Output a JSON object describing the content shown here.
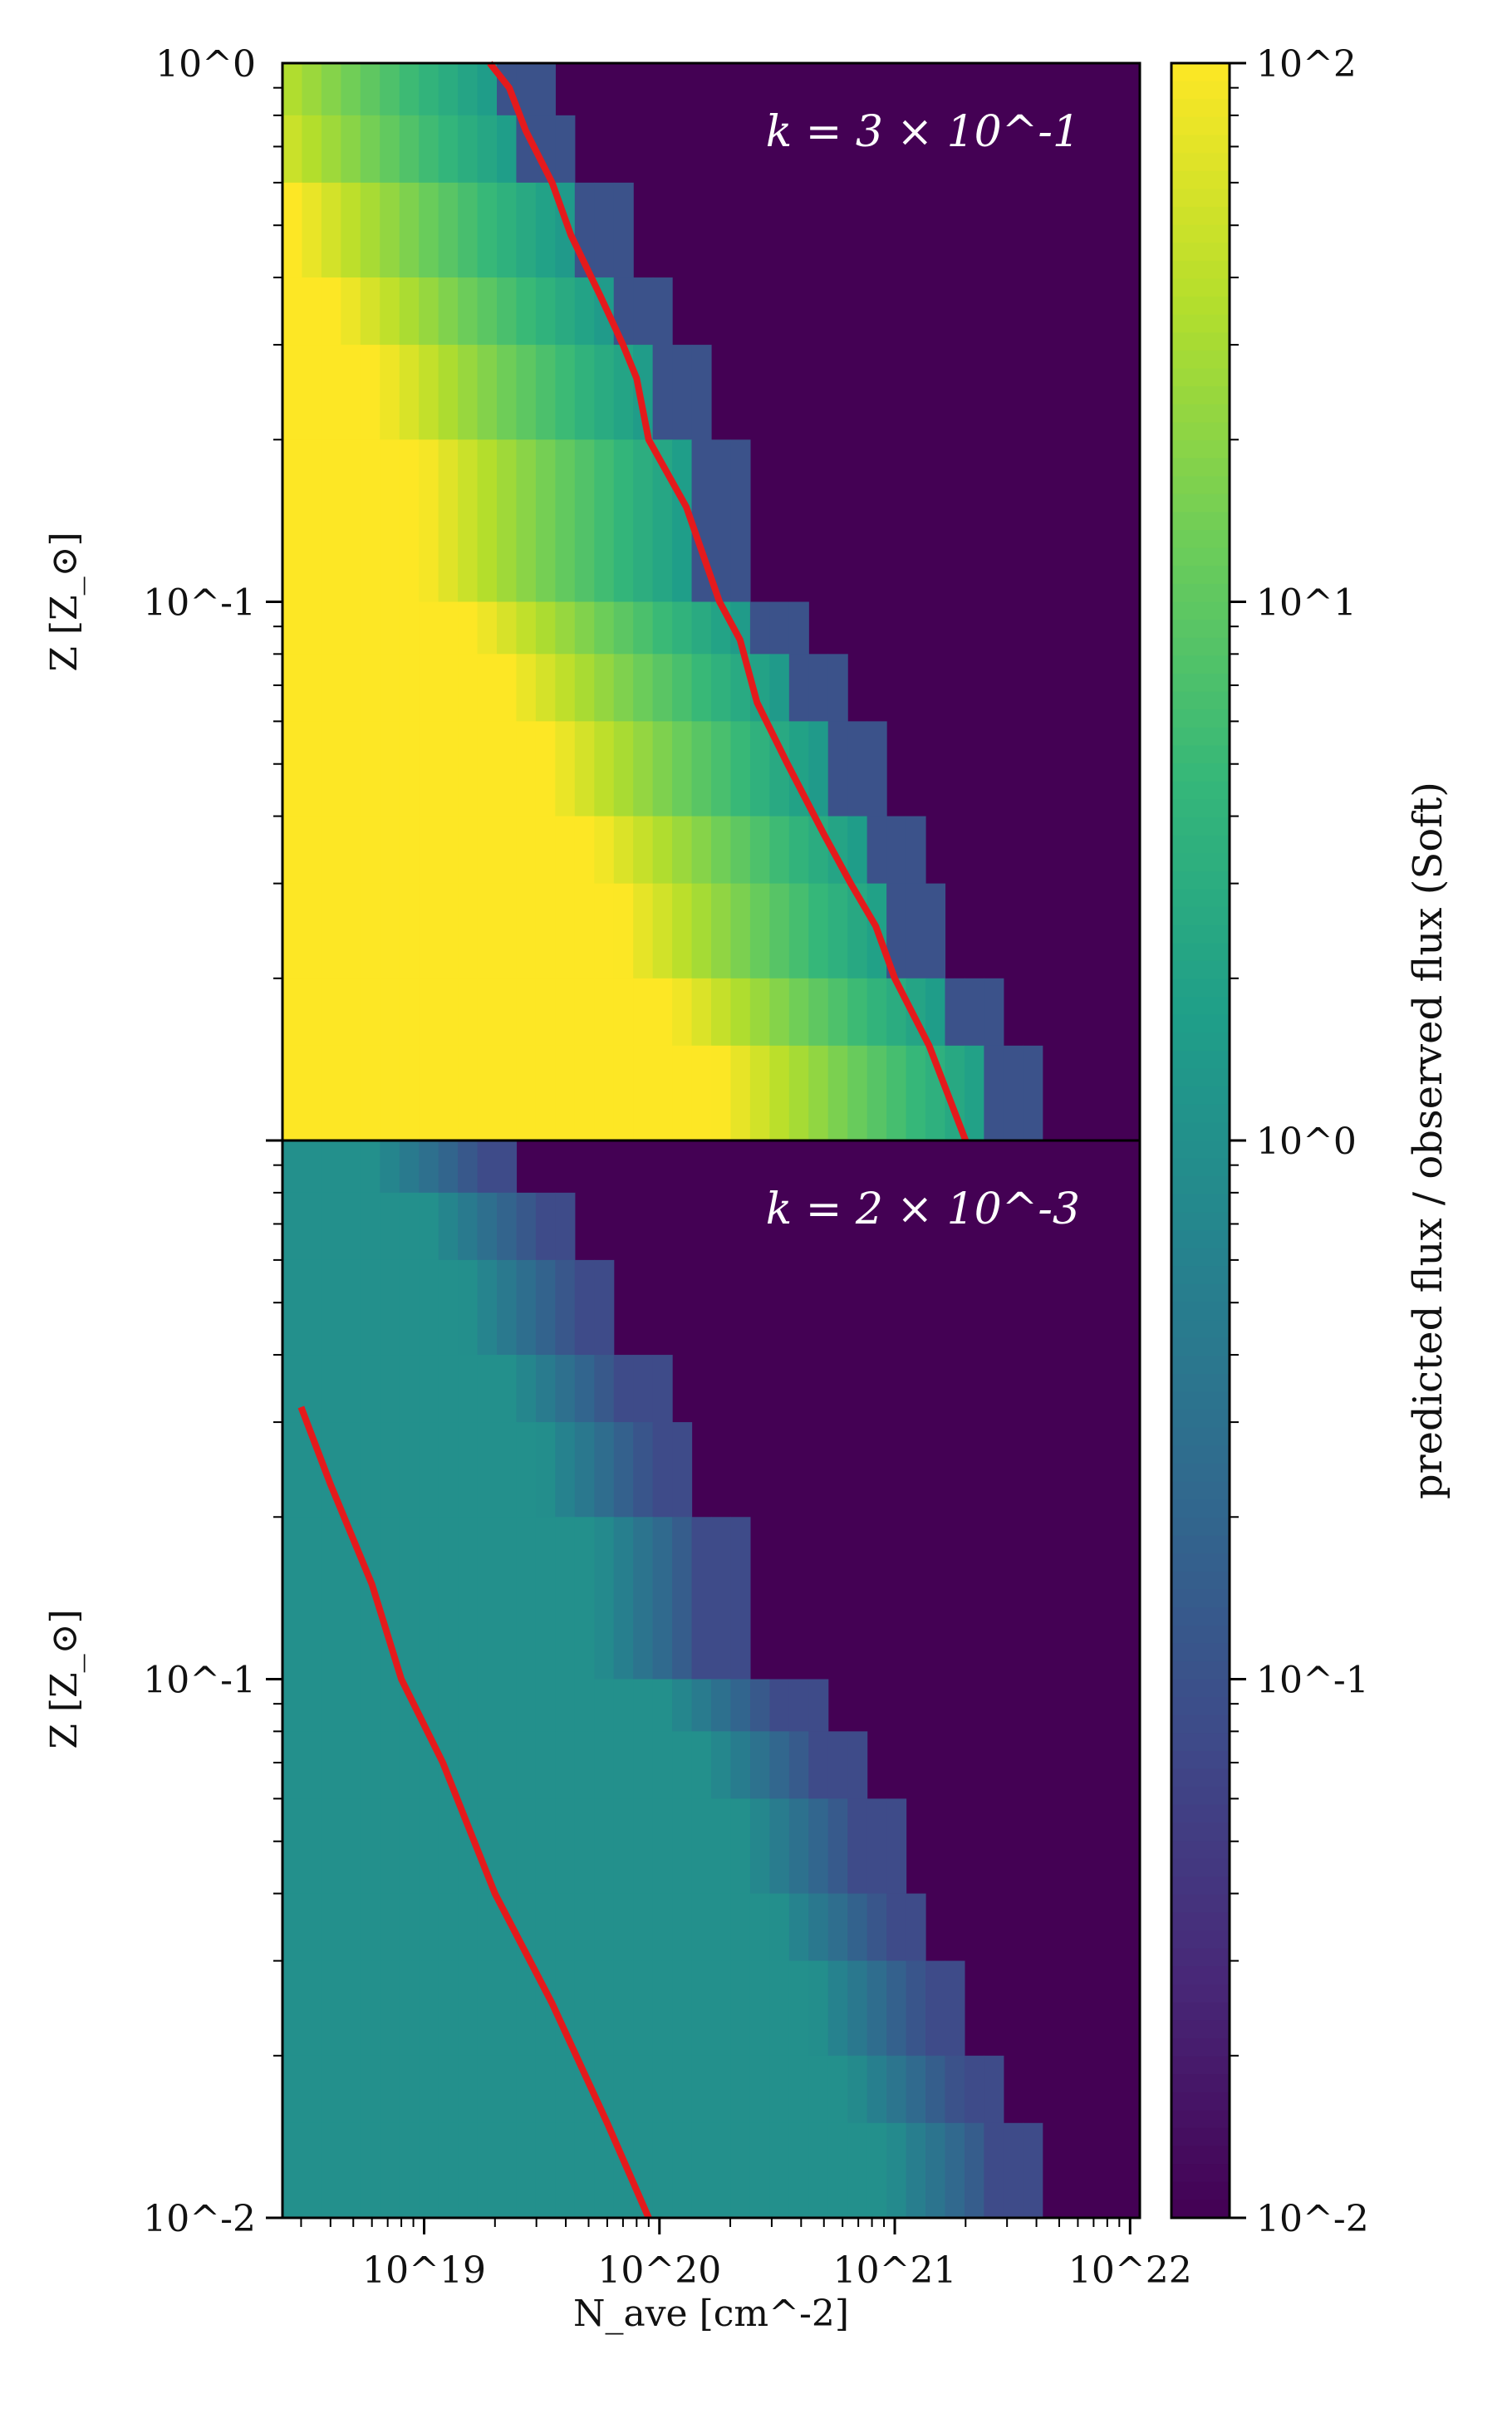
{
  "chart_data": {
    "type": "heatmap",
    "shared_x": {
      "label": "N_ave [cm^-2]",
      "scale": "log",
      "range": [
        2.5e+18,
        1.1e+22
      ],
      "ticks": [
        "10^19",
        "10^20",
        "10^21",
        "10^22"
      ]
    },
    "colorbar": {
      "label": "predicted flux / observed flux (Soft)",
      "scale": "log",
      "range": [
        0.01,
        100
      ],
      "ticks": [
        "10^2",
        "10^1",
        "10^0",
        "10^-1",
        "10^-2"
      ],
      "colormap": "viridis"
    },
    "panels": [
      {
        "annotation": "k = 3 × 10^-1",
        "ylabel": "Z [Z_⊙]",
        "y_scale": "log",
        "y_range": [
          0.01,
          1
        ],
        "y_ticks": [
          "10^0",
          "10^-1"
        ],
        "z_bins": [
          1.0,
          0.8,
          0.6,
          0.4,
          0.3,
          0.2,
          0.1,
          0.08,
          0.06,
          0.04,
          0.03,
          0.02,
          0.015,
          0.01
        ],
        "cutoff_nave": [
          2e+19,
          2.5e+19,
          4e+19,
          6e+19,
          9e+19,
          1.4e+20,
          2.3e+20,
          3.3e+20,
          4.8e+20,
          7.5e+20,
          1e+21,
          1.6e+21,
          2.6e+21,
          4.5e+21
        ],
        "fit_line": {
          "color": "#e41a1c",
          "points": [
            [
              1.9e+19,
              1.0
            ],
            [
              2.3e+19,
              0.9
            ],
            [
              2.7e+19,
              0.75
            ],
            [
              3.5e+19,
              0.6
            ],
            [
              4.2e+19,
              0.48
            ],
            [
              5.6e+19,
              0.37
            ],
            [
              7e+19,
              0.3
            ],
            [
              8e+19,
              0.26
            ],
            [
              9e+19,
              0.2
            ],
            [
              1.3e+20,
              0.15
            ],
            [
              1.8e+20,
              0.1
            ],
            [
              2.2e+20,
              0.085
            ],
            [
              2.6e+20,
              0.065
            ],
            [
              3.5e+20,
              0.05
            ],
            [
              5e+20,
              0.037
            ],
            [
              6.5e+20,
              0.03
            ],
            [
              8.3e+20,
              0.025
            ],
            [
              1e+21,
              0.02
            ],
            [
              1.4e+21,
              0.015
            ],
            [
              2e+21,
              0.01
            ]
          ]
        }
      },
      {
        "annotation": "k = 2 × 10^-3",
        "ylabel": "Z [Z_⊙]",
        "y_scale": "log",
        "y_range": [
          0.01,
          1
        ],
        "y_ticks": [
          "10^-1",
          "10^-2"
        ],
        "z_bins": [
          1.0,
          0.8,
          0.6,
          0.4,
          0.3,
          0.2,
          0.1,
          0.08,
          0.06,
          0.04,
          0.03,
          0.02,
          0.015,
          0.01
        ],
        "cutoff_nave": [
          1.7e+19,
          3e+19,
          4.3e+19,
          6.5e+19,
          9e+19,
          1.5e+20,
          3e+20,
          4.5e+20,
          6.5e+20,
          9e+20,
          1.3e+21,
          1.8e+21,
          2.6e+21,
          4e+21
        ],
        "fit_line": {
          "color": "#e41a1c",
          "points": [
            [
              3e+18,
              0.32
            ],
            [
              4e+18,
              0.23
            ],
            [
              6e+18,
              0.15
            ],
            [
              8e+18,
              0.1
            ],
            [
              1.2e+19,
              0.07
            ],
            [
              2e+19,
              0.04
            ],
            [
              3.5e+19,
              0.025
            ],
            [
              6e+19,
              0.015
            ],
            [
              9e+19,
              0.01
            ]
          ]
        }
      }
    ]
  }
}
